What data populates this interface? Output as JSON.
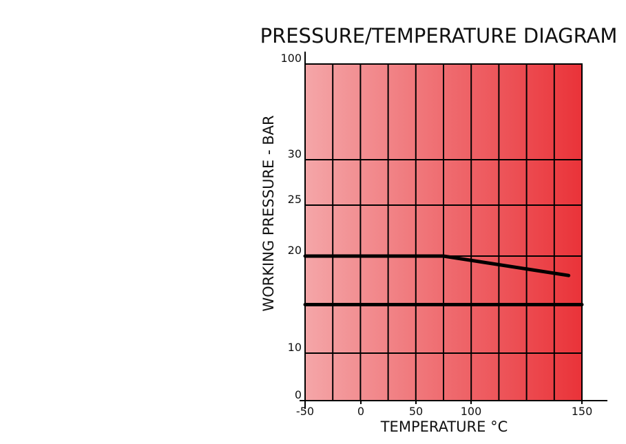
{
  "chart_data": {
    "type": "line",
    "title": "PRESSURE/TEMPERATURE DIAGRAM",
    "x_label": "TEMPERATURE °C",
    "y_label": "WORKING PRESSURE - BAR",
    "series": [
      {
        "color": "#000000",
        "x": [
          -50,
          75,
          144
        ],
        "values": [
          20,
          20,
          18
        ]
      },
      {
        "color": "#000000",
        "x": [
          -50,
          150
        ],
        "values": [
          15,
          15
        ]
      }
    ],
    "xlim": [
      -50,
      150
    ],
    "xticks": [
      -50,
      0,
      50,
      100,
      150
    ],
    "ylim": [
      0,
      100
    ],
    "yticks": [
      0,
      10,
      20,
      25,
      30,
      100
    ],
    "grid": true
  }
}
